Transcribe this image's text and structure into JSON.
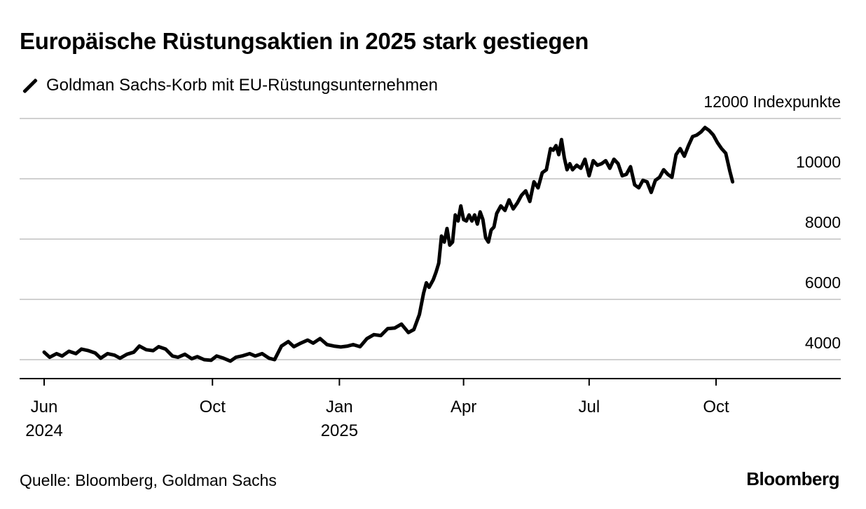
{
  "header": {
    "title": "Europäische Rüstungsaktien in 2025 stark gestiegen",
    "legend_label": "Goldman Sachs-Korb mit EU-Rüstungsunternehmen"
  },
  "footer": {
    "source": "Quelle: Bloomberg, Goldman Sachs",
    "brand": "Bloomberg"
  },
  "chart_data": {
    "type": "line",
    "title": "Europäische Rüstungsaktien in 2025 stark gestiegen",
    "ylabel": "12000 Indexpunkte",
    "xlabel": "",
    "ylim": [
      3400,
      12200
    ],
    "xlim": [
      "2024-05-01",
      "2025-12-01"
    ],
    "grid": true,
    "legend_position": "top-left",
    "y_ticks": [
      {
        "value": 12000,
        "label": "12000 Indexpunkte"
      },
      {
        "value": 10000,
        "label": "10000"
      },
      {
        "value": 8000,
        "label": "8000"
      },
      {
        "value": 6000,
        "label": "6000"
      },
      {
        "value": 4000,
        "label": "4000"
      }
    ],
    "x_ticks": [
      {
        "date": "2024-06-01",
        "label": "Jun",
        "sublabel": "2024"
      },
      {
        "date": "2024-10-01",
        "label": "Oct",
        "sublabel": ""
      },
      {
        "date": "2025-01-01",
        "label": "Jan",
        "sublabel": "2025"
      },
      {
        "date": "2025-04-01",
        "label": "Apr",
        "sublabel": ""
      },
      {
        "date": "2025-07-01",
        "label": "Jul",
        "sublabel": ""
      },
      {
        "date": "2025-10-01",
        "label": "Oct",
        "sublabel": ""
      }
    ],
    "series": [
      {
        "name": "Goldman Sachs-Korb mit EU-Rüstungsunternehmen",
        "color": "#000000",
        "points": [
          [
            "2024-06-01",
            4250
          ],
          [
            "2024-06-05",
            4080
          ],
          [
            "2024-06-10",
            4200
          ],
          [
            "2024-06-14",
            4120
          ],
          [
            "2024-06-19",
            4280
          ],
          [
            "2024-06-24",
            4200
          ],
          [
            "2024-06-28",
            4350
          ],
          [
            "2024-07-03",
            4300
          ],
          [
            "2024-07-08",
            4220
          ],
          [
            "2024-07-12",
            4050
          ],
          [
            "2024-07-17",
            4200
          ],
          [
            "2024-07-22",
            4150
          ],
          [
            "2024-07-26",
            4050
          ],
          [
            "2024-07-31",
            4180
          ],
          [
            "2024-08-05",
            4250
          ],
          [
            "2024-08-09",
            4450
          ],
          [
            "2024-08-14",
            4330
          ],
          [
            "2024-08-19",
            4300
          ],
          [
            "2024-08-23",
            4430
          ],
          [
            "2024-08-28",
            4350
          ],
          [
            "2024-09-02",
            4120
          ],
          [
            "2024-09-06",
            4080
          ],
          [
            "2024-09-11",
            4180
          ],
          [
            "2024-09-16",
            4030
          ],
          [
            "2024-09-20",
            4100
          ],
          [
            "2024-09-25",
            4000
          ],
          [
            "2024-09-30",
            3980
          ],
          [
            "2024-10-04",
            4120
          ],
          [
            "2024-10-09",
            4050
          ],
          [
            "2024-10-14",
            3950
          ],
          [
            "2024-10-18",
            4080
          ],
          [
            "2024-10-23",
            4130
          ],
          [
            "2024-10-28",
            4200
          ],
          [
            "2024-11-01",
            4120
          ],
          [
            "2024-11-06",
            4200
          ],
          [
            "2024-11-11",
            4050
          ],
          [
            "2024-11-15",
            4000
          ],
          [
            "2024-11-20",
            4450
          ],
          [
            "2024-11-25",
            4600
          ],
          [
            "2024-11-29",
            4430
          ],
          [
            "2024-12-04",
            4550
          ],
          [
            "2024-12-09",
            4650
          ],
          [
            "2024-12-13",
            4550
          ],
          [
            "2024-12-18",
            4700
          ],
          [
            "2024-12-23",
            4500
          ],
          [
            "2024-12-28",
            4450
          ],
          [
            "2025-01-02",
            4420
          ],
          [
            "2025-01-07",
            4450
          ],
          [
            "2025-01-11",
            4500
          ],
          [
            "2025-01-16",
            4430
          ],
          [
            "2025-01-21",
            4700
          ],
          [
            "2025-01-26",
            4830
          ],
          [
            "2025-01-31",
            4800
          ],
          [
            "2025-02-05",
            5030
          ],
          [
            "2025-02-10",
            5050
          ],
          [
            "2025-02-15",
            5180
          ],
          [
            "2025-02-20",
            4900
          ],
          [
            "2025-02-24",
            5000
          ],
          [
            "2025-02-28",
            5500
          ],
          [
            "2025-03-03",
            6200
          ],
          [
            "2025-03-05",
            6550
          ],
          [
            "2025-03-07",
            6400
          ],
          [
            "2025-03-10",
            6650
          ],
          [
            "2025-03-12",
            6900
          ],
          [
            "2025-03-14",
            7200
          ],
          [
            "2025-03-16",
            8100
          ],
          [
            "2025-03-18",
            7900
          ],
          [
            "2025-03-20",
            8350
          ],
          [
            "2025-03-22",
            7800
          ],
          [
            "2025-03-24",
            7900
          ],
          [
            "2025-03-26",
            8800
          ],
          [
            "2025-03-28",
            8600
          ],
          [
            "2025-03-30",
            9100
          ],
          [
            "2025-04-01",
            8650
          ],
          [
            "2025-04-03",
            8600
          ],
          [
            "2025-04-05",
            8800
          ],
          [
            "2025-04-07",
            8600
          ],
          [
            "2025-04-09",
            8800
          ],
          [
            "2025-04-11",
            8500
          ],
          [
            "2025-04-13",
            8900
          ],
          [
            "2025-04-15",
            8650
          ],
          [
            "2025-04-17",
            8050
          ],
          [
            "2025-04-19",
            7900
          ],
          [
            "2025-04-21",
            8300
          ],
          [
            "2025-04-23",
            8400
          ],
          [
            "2025-04-25",
            8850
          ],
          [
            "2025-04-28",
            9100
          ],
          [
            "2025-05-01",
            8950
          ],
          [
            "2025-05-04",
            9300
          ],
          [
            "2025-05-07",
            9000
          ],
          [
            "2025-05-10",
            9200
          ],
          [
            "2025-05-13",
            9450
          ],
          [
            "2025-05-16",
            9600
          ],
          [
            "2025-05-19",
            9250
          ],
          [
            "2025-05-22",
            9900
          ],
          [
            "2025-05-25",
            9700
          ],
          [
            "2025-05-28",
            10200
          ],
          [
            "2025-05-31",
            10300
          ],
          [
            "2025-06-03",
            11000
          ],
          [
            "2025-06-05",
            10950
          ],
          [
            "2025-06-07",
            11100
          ],
          [
            "2025-06-09",
            10800
          ],
          [
            "2025-06-11",
            11300
          ],
          [
            "2025-06-13",
            10700
          ],
          [
            "2025-06-15",
            10300
          ],
          [
            "2025-06-17",
            10500
          ],
          [
            "2025-06-19",
            10300
          ],
          [
            "2025-06-22",
            10450
          ],
          [
            "2025-06-25",
            10350
          ],
          [
            "2025-06-28",
            10650
          ],
          [
            "2025-07-01",
            10100
          ],
          [
            "2025-07-04",
            10600
          ],
          [
            "2025-07-07",
            10450
          ],
          [
            "2025-07-10",
            10500
          ],
          [
            "2025-07-13",
            10600
          ],
          [
            "2025-07-16",
            10350
          ],
          [
            "2025-07-19",
            10650
          ],
          [
            "2025-07-22",
            10500
          ],
          [
            "2025-07-25",
            10100
          ],
          [
            "2025-07-28",
            10150
          ],
          [
            "2025-07-31",
            10400
          ],
          [
            "2025-08-03",
            9800
          ],
          [
            "2025-08-06",
            9700
          ],
          [
            "2025-08-09",
            9950
          ],
          [
            "2025-08-12",
            9900
          ],
          [
            "2025-08-15",
            9550
          ],
          [
            "2025-08-18",
            9950
          ],
          [
            "2025-08-21",
            10050
          ],
          [
            "2025-08-24",
            10300
          ],
          [
            "2025-08-27",
            10150
          ],
          [
            "2025-08-30",
            10050
          ],
          [
            "2025-09-02",
            10800
          ],
          [
            "2025-09-05",
            11000
          ],
          [
            "2025-09-08",
            10750
          ],
          [
            "2025-09-11",
            11100
          ],
          [
            "2025-09-14",
            11400
          ],
          [
            "2025-09-17",
            11450
          ],
          [
            "2025-09-20",
            11550
          ],
          [
            "2025-09-23",
            11700
          ],
          [
            "2025-09-26",
            11600
          ],
          [
            "2025-09-29",
            11450
          ],
          [
            "2025-10-02",
            11200
          ],
          [
            "2025-10-05",
            11000
          ],
          [
            "2025-10-08",
            10850
          ],
          [
            "2025-10-11",
            10250
          ],
          [
            "2025-10-13",
            9900
          ]
        ]
      }
    ]
  }
}
